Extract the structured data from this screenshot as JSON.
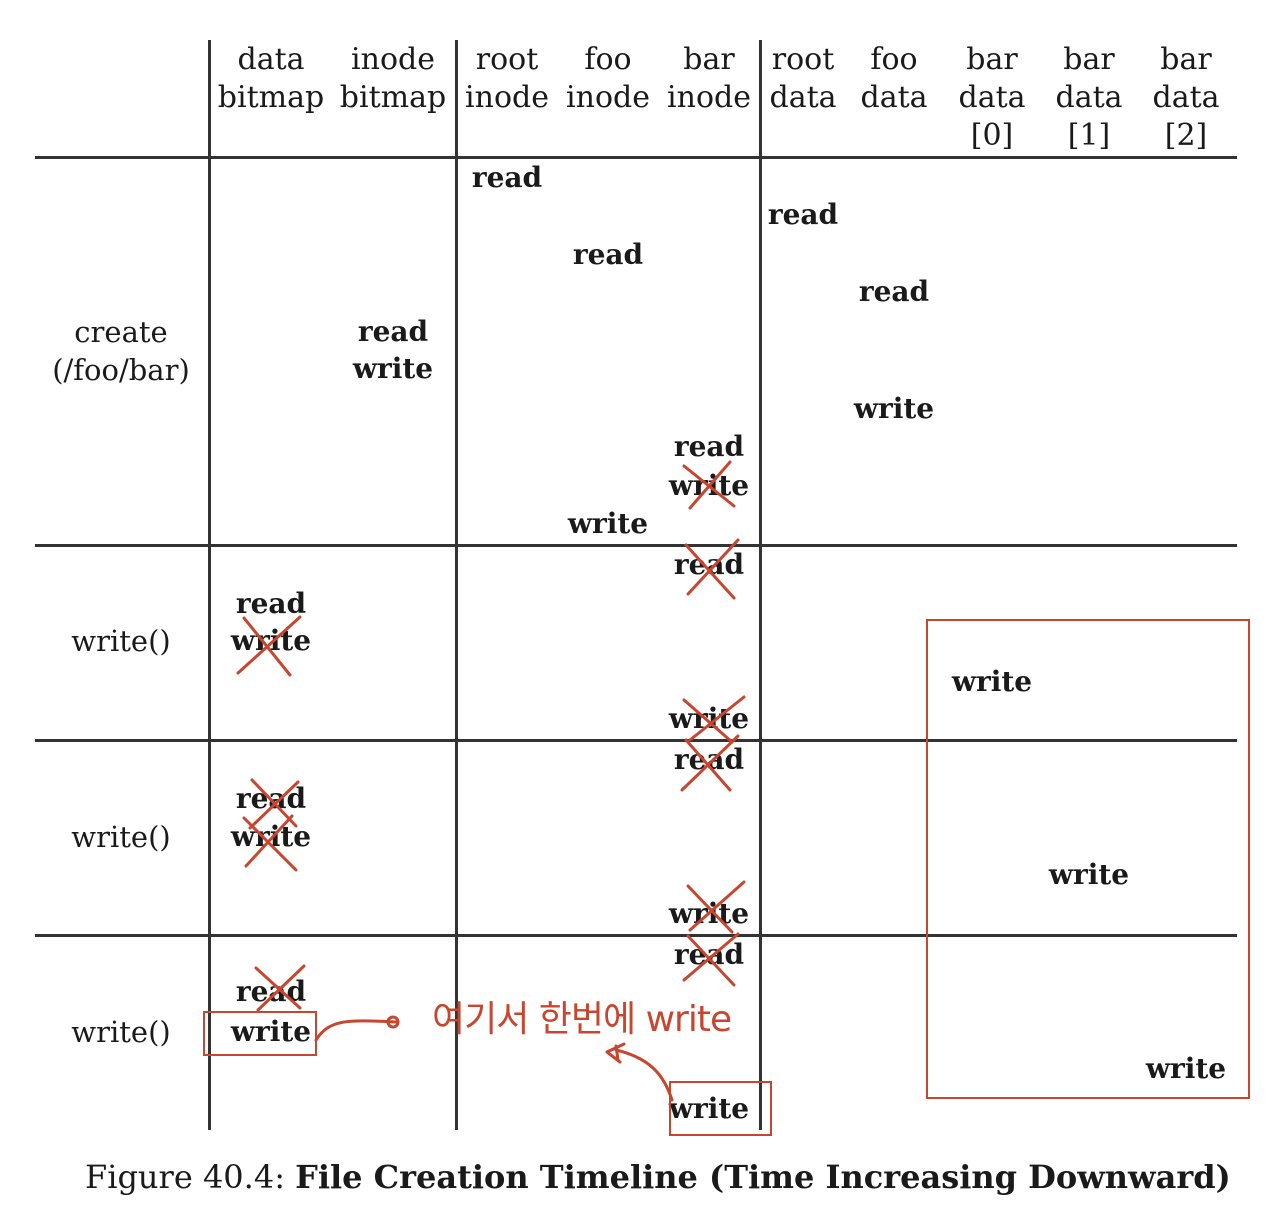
{
  "headers": [
    {
      "l1": "data",
      "l2": "bitmap",
      "l3": ""
    },
    {
      "l1": "inode",
      "l2": "bitmap",
      "l3": ""
    },
    {
      "l1": "root",
      "l2": "inode",
      "l3": ""
    },
    {
      "l1": "foo",
      "l2": "inode",
      "l3": ""
    },
    {
      "l1": "bar",
      "l2": "inode",
      "l3": ""
    },
    {
      "l1": "root",
      "l2": "data",
      "l3": ""
    },
    {
      "l1": "foo",
      "l2": "data",
      "l3": ""
    },
    {
      "l1": "bar",
      "l2": "data",
      "l3": "[0]"
    },
    {
      "l1": "bar",
      "l2": "data",
      "l3": "[1]"
    },
    {
      "l1": "bar",
      "l2": "data",
      "l3": "[2]"
    }
  ],
  "rows": [
    {
      "label1": "create",
      "label2": "(/foo/bar)"
    },
    {
      "label1": "write()",
      "label2": ""
    },
    {
      "label1": "write()",
      "label2": ""
    },
    {
      "label1": "write()",
      "label2": ""
    }
  ],
  "ops": {
    "read": "read",
    "write": "write",
    "read_write": [
      "read",
      "write"
    ]
  },
  "annotation": {
    "note": "여기서 한번에 write",
    "crossed_color": "#c8462f"
  },
  "caption": {
    "prefix": "Figure 40.4: ",
    "title": "File Creation Timeline (Time Increasing Downward)"
  }
}
